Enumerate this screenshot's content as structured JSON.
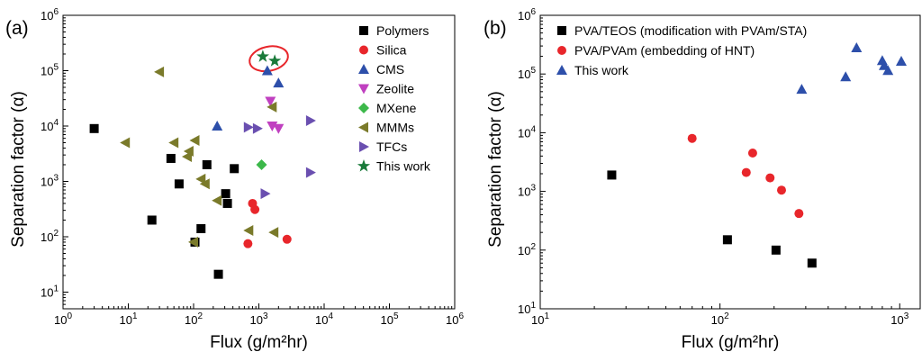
{
  "chart_data": [
    {
      "type": "scatter",
      "panel_label": "(a)",
      "title": "",
      "xlabel": "Flux (g/m²hr)",
      "ylabel": "Separation factor (α)",
      "xscale": "log",
      "yscale": "log",
      "xlim": [
        1,
        1000000
      ],
      "ylim": [
        5,
        1000000
      ],
      "xticks": [
        1,
        10,
        100,
        1000,
        10000,
        100000,
        1000000
      ],
      "xtick_labels": [
        [
          "10",
          "0"
        ],
        [
          "10",
          "1"
        ],
        [
          "10",
          "2"
        ],
        [
          "10",
          "3"
        ],
        [
          "10",
          "4"
        ],
        [
          "10",
          "5"
        ],
        [
          "10",
          "6"
        ]
      ],
      "yticks": [
        10,
        100,
        1000,
        10000,
        100000,
        1000000
      ],
      "ytick_labels": [
        [
          "10",
          "1"
        ],
        [
          "10",
          "2"
        ],
        [
          "10",
          "3"
        ],
        [
          "10",
          "4"
        ],
        [
          "10",
          "5"
        ],
        [
          "10",
          "6"
        ]
      ],
      "legend_position": "top-right",
      "highlight_ellipse": {
        "color": "#e8262b",
        "around": "This work"
      },
      "series": [
        {
          "name": "Polymers",
          "marker": "square",
          "color": "#000000",
          "points": [
            [
              3,
              9000
            ],
            [
              23,
              200
            ],
            [
              45,
              2600
            ],
            [
              60,
              900
            ],
            [
              105,
              80
            ],
            [
              130,
              140
            ],
            [
              160,
              2000
            ],
            [
              240,
              21
            ],
            [
              310,
              600
            ],
            [
              330,
              400
            ],
            [
              420,
              1700
            ]
          ]
        },
        {
          "name": "Silica",
          "marker": "circle",
          "color": "#e8262b",
          "points": [
            [
              680,
              75
            ],
            [
              800,
              400
            ],
            [
              870,
              310
            ],
            [
              2700,
              90
            ]
          ]
        },
        {
          "name": "CMS",
          "marker": "triangle-up",
          "color": "#2d4faa",
          "points": [
            [
              230,
              10000
            ],
            [
              1350,
              100000
            ],
            [
              2000,
              60000
            ]
          ]
        },
        {
          "name": "Zeolite",
          "marker": "triangle-down",
          "color": "#c040c0",
          "points": [
            [
              1500,
              28000
            ],
            [
              1600,
              10000
            ],
            [
              2000,
              9000
            ]
          ]
        },
        {
          "name": "MXene",
          "marker": "diamond",
          "color": "#3cb84a",
          "points": [
            [
              1100,
              2000
            ]
          ]
        },
        {
          "name": "MMMs",
          "marker": "triangle-left",
          "color": "#7a7a2a",
          "points": [
            [
              9,
              5000
            ],
            [
              30,
              95000
            ],
            [
              50,
              5000
            ],
            [
              80,
              2800
            ],
            [
              85,
              3500
            ],
            [
              100,
              80
            ],
            [
              105,
              5500
            ],
            [
              130,
              1100
            ],
            [
              150,
              900
            ],
            [
              230,
              450
            ],
            [
              700,
              130
            ],
            [
              1700,
              120
            ],
            [
              1600,
              22000
            ]
          ]
        },
        {
          "name": "TFCs",
          "marker": "triangle-right",
          "color": "#6a4fb0",
          "points": [
            [
              690,
              9500
            ],
            [
              950,
              9000
            ],
            [
              1250,
              600
            ],
            [
              6200,
              12500
            ],
            [
              6200,
              1450
            ]
          ]
        },
        {
          "name": "This work",
          "marker": "star",
          "color": "#1a7a3a",
          "points": [
            [
              1150,
              180000
            ],
            [
              1750,
              150000
            ]
          ]
        }
      ]
    },
    {
      "type": "scatter",
      "panel_label": "(b)",
      "title": "",
      "xlabel": "Flux (g/m²hr)",
      "ylabel": "Separation factor (α)",
      "xscale": "log",
      "yscale": "log",
      "xlim": [
        10,
        1300
      ],
      "ylim": [
        10,
        1000000
      ],
      "xticks": [
        10,
        100,
        1000
      ],
      "xtick_labels": [
        [
          "10",
          "1"
        ],
        [
          "10",
          "2"
        ],
        [
          "10",
          "3"
        ]
      ],
      "yticks": [
        10,
        100,
        1000,
        10000,
        100000,
        1000000
      ],
      "ytick_labels": [
        [
          "10",
          "1"
        ],
        [
          "10",
          "2"
        ],
        [
          "10",
          "3"
        ],
        [
          "10",
          "4"
        ],
        [
          "10",
          "5"
        ],
        [
          "10",
          "6"
        ]
      ],
      "legend_position": "top-left",
      "series": [
        {
          "name": "PVA/TEOS (modification with PVAm/STA)",
          "marker": "square",
          "color": "#000000",
          "points": [
            [
              25,
              1900
            ],
            [
              110,
              150
            ],
            [
              205,
              100
            ],
            [
              325,
              60
            ]
          ]
        },
        {
          "name": "PVA/PVAm (embedding of HNT)",
          "marker": "circle",
          "color": "#e8262b",
          "points": [
            [
              70,
              8000
            ],
            [
              140,
              2100
            ],
            [
              152,
              4500
            ],
            [
              190,
              1700
            ],
            [
              220,
              1050
            ],
            [
              275,
              420
            ]
          ]
        },
        {
          "name": "This work",
          "marker": "triangle-up",
          "color": "#2d4faa",
          "points": [
            [
              285,
              55000
            ],
            [
              500,
              90000
            ],
            [
              575,
              280000
            ],
            [
              800,
              170000
            ],
            [
              820,
              140000
            ],
            [
              860,
              115000
            ],
            [
              1020,
              165000
            ]
          ]
        }
      ]
    }
  ]
}
